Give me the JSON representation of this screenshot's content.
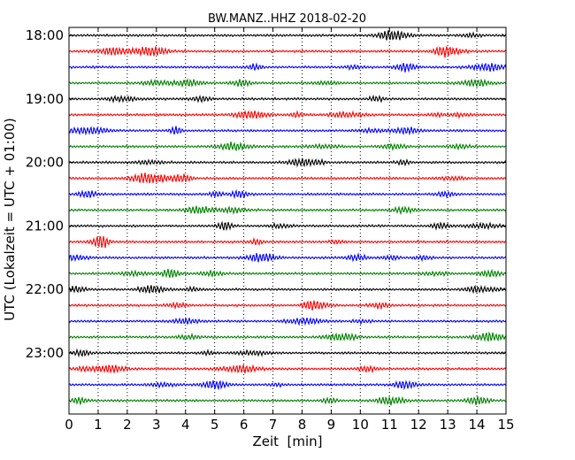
{
  "chart_data": {
    "type": "line",
    "title": "BW.MANZ..HHZ 2018-02-20",
    "xlabel": "Zeit  [min]",
    "ylabel": "UTC (Lokalzeit = UTC + 01:00)",
    "xlim": [
      0,
      15
    ],
    "x_ticks": [
      0,
      1,
      2,
      3,
      4,
      5,
      6,
      7,
      8,
      9,
      10,
      11,
      12,
      13,
      14,
      15
    ],
    "x_tick_labels": [
      "0",
      "1",
      "2",
      "3",
      "4",
      "5",
      "6",
      "7",
      "8",
      "9",
      "10",
      "11",
      "12",
      "13",
      "14",
      "15"
    ],
    "y_tick_labels": [
      "18:00",
      "19:00",
      "20:00",
      "21:00",
      "22:00",
      "23:00"
    ],
    "trace_start_times": [
      "18:00",
      "18:15",
      "18:30",
      "18:45",
      "19:00",
      "19:15",
      "19:30",
      "19:45",
      "20:00",
      "20:15",
      "20:30",
      "20:45",
      "21:00",
      "21:15",
      "21:30",
      "21:45",
      "22:00",
      "22:15",
      "22:30",
      "22:45",
      "23:00",
      "23:15",
      "23:30",
      "23:45"
    ],
    "trace_colors": [
      "#000000",
      "#ff0000",
      "#0000ff",
      "#008000"
    ],
    "grid": "vertical dotted",
    "legend": "none"
  }
}
